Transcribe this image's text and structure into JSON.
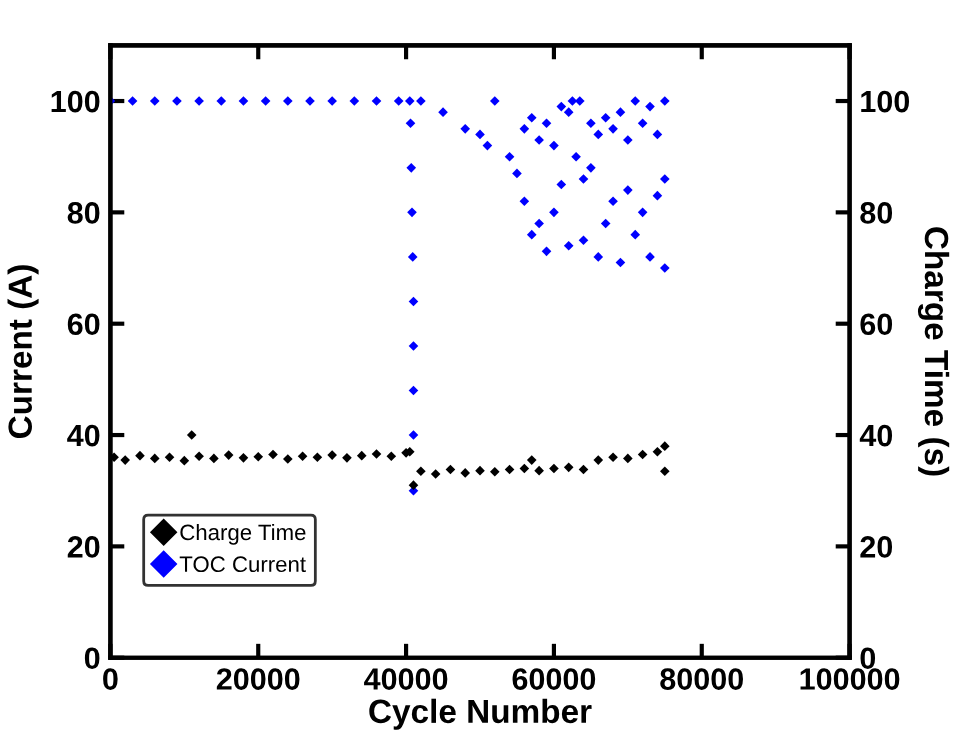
{
  "chart_data": {
    "type": "scatter",
    "xlabel": "Cycle Number",
    "ylabel": "Current (A)",
    "y2label": "Charge Time (s)",
    "xlim": [
      0,
      100000
    ],
    "xticks": [
      0,
      20000,
      40000,
      60000,
      80000,
      100000
    ],
    "ylim": [
      0,
      110
    ],
    "yticks": [
      0,
      20,
      40,
      60,
      80,
      100
    ],
    "y2lim": [
      0,
      110
    ],
    "y2ticks": [
      0,
      20,
      40,
      60,
      80,
      100
    ],
    "marker": "diamond",
    "grid": false,
    "legend": "bottom left",
    "series": [
      {
        "name": "Charge Time",
        "color": "#000000",
        "axis": "y2",
        "x": [
          500,
          2000,
          4000,
          6000,
          8000,
          10000,
          11000,
          12000,
          14000,
          16000,
          18000,
          20000,
          22000,
          24000,
          26000,
          28000,
          30000,
          32000,
          34000,
          36000,
          38000,
          40000,
          40500,
          41000,
          42000,
          44000,
          46000,
          48000,
          50000,
          52000,
          54000,
          56000,
          57000,
          58000,
          60000,
          62000,
          64000,
          66000,
          68000,
          70000,
          72000,
          74000,
          75000,
          75000
        ],
        "values": [
          36,
          35.5,
          36.3,
          35.8,
          36,
          35.4,
          40,
          36.2,
          35.8,
          36.4,
          35.9,
          36.1,
          36.5,
          35.7,
          36.2,
          36,
          36.4,
          35.9,
          36.3,
          36.6,
          36.2,
          36.8,
          37,
          31,
          33.5,
          33,
          33.8,
          33.2,
          33.6,
          33.4,
          33.8,
          34,
          35.5,
          33.6,
          34,
          34.2,
          33.8,
          35.5,
          36,
          35.8,
          36.5,
          37,
          38,
          33.5
        ]
      },
      {
        "name": "TOC Current",
        "color": "#0000ff",
        "x": [
          0,
          3000,
          6000,
          9000,
          12000,
          15000,
          18000,
          21000,
          24000,
          27000,
          30000,
          33000,
          36000,
          39000,
          40500,
          40600,
          40700,
          40800,
          40900,
          41000,
          41000,
          41000,
          41000,
          41000,
          42000,
          45000,
          48000,
          50000,
          51000,
          52000,
          54000,
          55000,
          56000,
          56000,
          57000,
          57000,
          58000,
          58000,
          59000,
          59000,
          60000,
          60000,
          61000,
          61000,
          62000,
          62000,
          62500,
          63000,
          63500,
          64000,
          64000,
          65000,
          65000,
          66000,
          66000,
          67000,
          67000,
          68000,
          68000,
          69000,
          69000,
          70000,
          70000,
          71000,
          71000,
          72000,
          72000,
          73000,
          73000,
          74000,
          74000,
          75000,
          75000,
          75000
        ],
        "values": [
          100,
          100,
          100,
          100,
          100,
          100,
          100,
          100,
          100,
          100,
          100,
          100,
          100,
          100,
          100,
          96,
          88,
          80,
          72,
          64,
          56,
          48,
          40,
          30,
          100,
          98,
          95,
          94,
          92,
          100,
          90,
          87,
          95,
          82,
          97,
          76,
          93,
          78,
          96,
          73,
          92,
          80,
          99,
          85,
          98,
          74,
          100,
          90,
          100,
          86,
          75,
          96,
          88,
          94,
          72,
          97,
          78,
          95,
          82,
          98,
          71,
          93,
          84,
          100,
          76,
          96,
          80,
          99,
          72,
          94,
          83,
          100,
          70,
          86
        ]
      }
    ]
  }
}
